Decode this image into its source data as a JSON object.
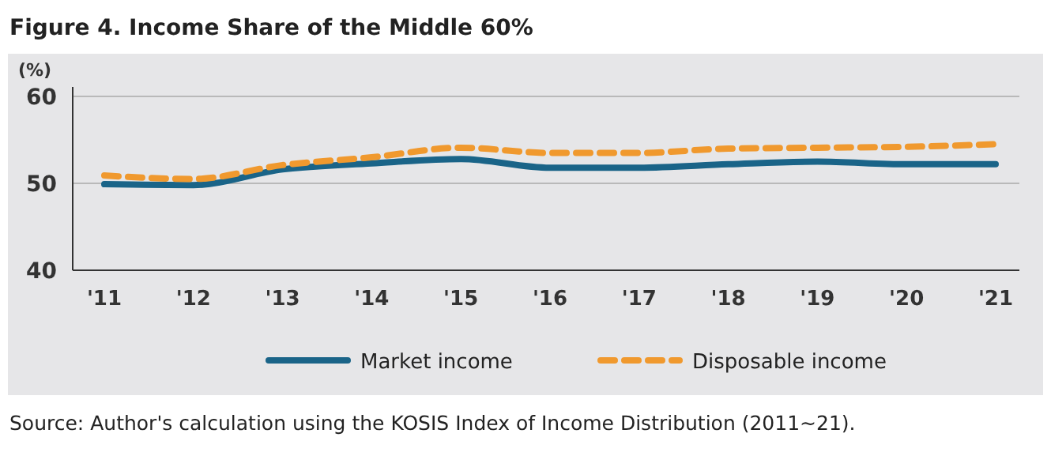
{
  "chart_data": {
    "type": "line",
    "title": "Figure 4. Income Share of the Middle 60%",
    "ylabel": "(%)",
    "categories": [
      "'11",
      "'12",
      "'13",
      "'14",
      "'15",
      "'16",
      "'17",
      "'18",
      "'19",
      "'20",
      "'21"
    ],
    "series": [
      {
        "name": "Market income",
        "color": "#1a6488",
        "line_style": "solid",
        "values": [
          49.9,
          49.8,
          51.6,
          52.3,
          52.8,
          51.8,
          51.8,
          52.2,
          52.5,
          52.2,
          52.2
        ]
      },
      {
        "name": "Disposable income",
        "color": "#f0992e",
        "line_style": "dashed",
        "values": [
          50.9,
          50.5,
          52.1,
          53.0,
          54.1,
          53.5,
          53.5,
          54.0,
          54.1,
          54.2,
          54.5
        ]
      }
    ],
    "ylim": [
      40,
      60
    ],
    "yticks": [
      40,
      50,
      60
    ],
    "grid": "y",
    "legend": "bottom",
    "marker": "none",
    "annotations": [
      "Source: Author's calculation using the KOSIS Index of Income Distribution (2011~21)."
    ]
  }
}
